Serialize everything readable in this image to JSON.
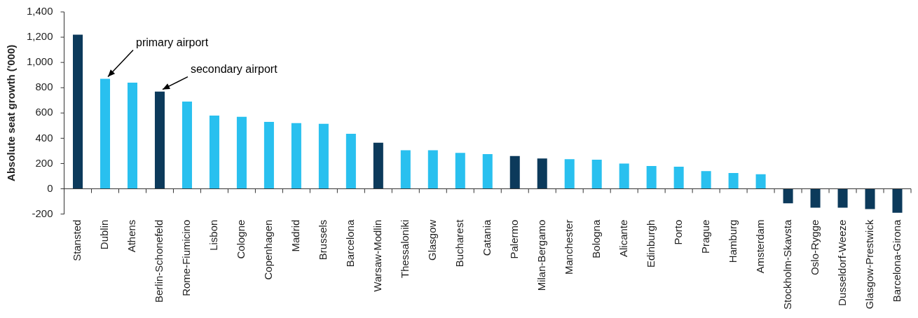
{
  "chart_data": {
    "type": "bar",
    "ylabel": "Absolute seat growth ('000)",
    "categories": [
      "Stansted",
      "Dublin",
      "Athens",
      "Berlin-Schonefeld",
      "Rome-Fiumicino",
      "Lisbon",
      "Cologne",
      "Copenhagen",
      "Madrid",
      "Brussels",
      "Barcelona",
      "Warsaw-Modlin",
      "Thessaloniki",
      "Glasgow",
      "Bucharest",
      "Catania",
      "Palermo",
      "Milan-Bergamo",
      "Manchester",
      "Bologna",
      "Alicante",
      "Edinburgh",
      "Porto",
      "Prague",
      "Hamburg",
      "Amsterdam",
      "Stockholm-Skavsta",
      "Oslo-Rygge",
      "Dusseldorf-Weeze",
      "Glasgow-Prestwick",
      "Barcelona-Girona"
    ],
    "values": [
      1220,
      870,
      840,
      770,
      690,
      580,
      570,
      530,
      520,
      515,
      435,
      365,
      305,
      305,
      285,
      275,
      260,
      240,
      235,
      230,
      200,
      180,
      175,
      140,
      125,
      115,
      -115,
      -150,
      -150,
      -160,
      -190
    ],
    "colors": [
      "#0c3a5b",
      "#29c0ef",
      "#29c0ef",
      "#0c3a5b",
      "#29c0ef",
      "#29c0ef",
      "#29c0ef",
      "#29c0ef",
      "#29c0ef",
      "#29c0ef",
      "#29c0ef",
      "#0c3a5b",
      "#29c0ef",
      "#29c0ef",
      "#29c0ef",
      "#29c0ef",
      "#0c3a5b",
      "#0c3a5b",
      "#29c0ef",
      "#29c0ef",
      "#29c0ef",
      "#29c0ef",
      "#29c0ef",
      "#29c0ef",
      "#29c0ef",
      "#29c0ef",
      "#0c3a5b",
      "#0c3a5b",
      "#0c3a5b",
      "#0c3a5b",
      "#0c3a5b"
    ],
    "ylim": [
      -200,
      1400
    ],
    "yticks": [
      -200,
      0,
      200,
      400,
      600,
      800,
      {
        "value": 1000,
        "label": "1,000"
      },
      {
        "value": 1200,
        "label": "1,200"
      },
      {
        "value": 1400,
        "label": "1,400"
      }
    ],
    "annotations": [
      {
        "text": "primary airport",
        "x": "Dublin",
        "y": 870
      },
      {
        "text": "secondary airport",
        "x": "Berlin-Schonefeld",
        "y": 770
      }
    ],
    "legend": false
  }
}
